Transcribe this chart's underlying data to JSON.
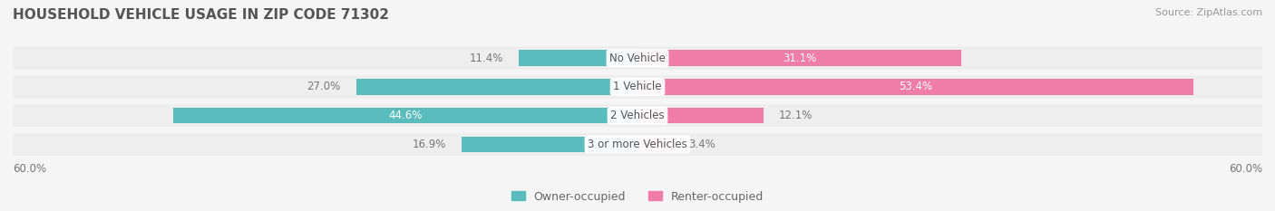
{
  "title": "HOUSEHOLD VEHICLE USAGE IN ZIP CODE 71302",
  "source": "Source: ZipAtlas.com",
  "categories": [
    "No Vehicle",
    "1 Vehicle",
    "2 Vehicles",
    "3 or more Vehicles"
  ],
  "owner_values": [
    11.4,
    27.0,
    44.6,
    16.9
  ],
  "renter_values": [
    31.1,
    53.4,
    12.1,
    3.4
  ],
  "owner_color": "#5bbcbe",
  "renter_color": "#f07ca8",
  "bar_bg_color": "#eeeeee",
  "owner_label": "Owner-occupied",
  "renter_label": "Renter-occupied",
  "axis_max": 60.0,
  "axis_label": "60.0%",
  "title_fontsize": 11,
  "source_fontsize": 8,
  "label_fontsize": 8.5,
  "legend_fontsize": 9,
  "category_fontsize": 8.5,
  "bar_height": 0.55,
  "background_color": "#f5f5f5"
}
